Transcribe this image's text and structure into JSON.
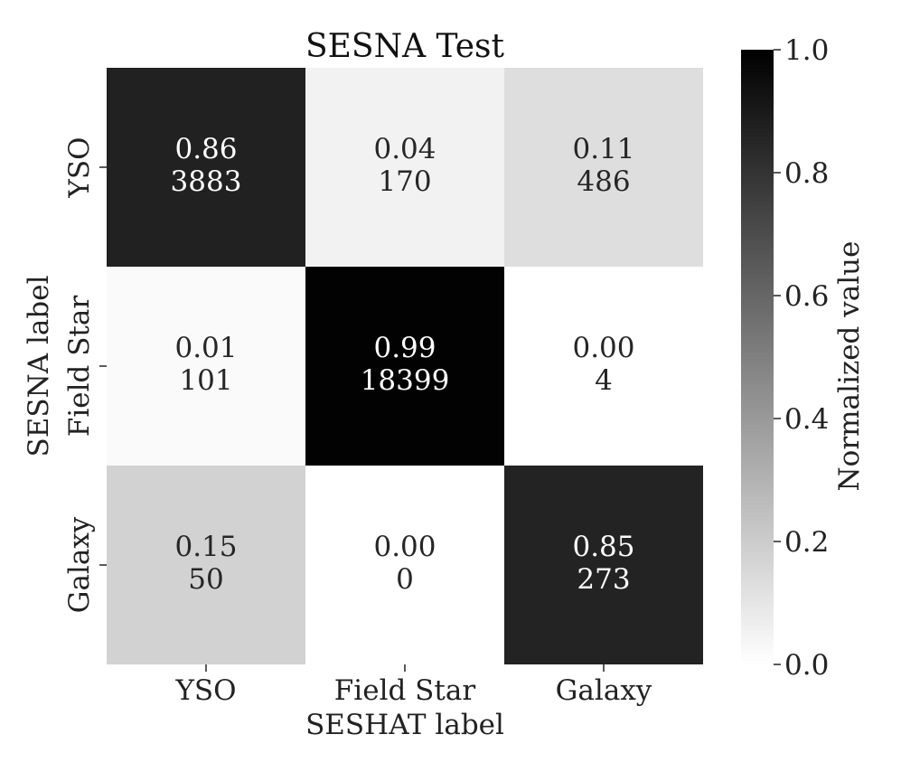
{
  "chart_data": {
    "type": "heatmap",
    "title": "SESNA Test",
    "xlabel": "SESHAT label",
    "ylabel": "SESNA label",
    "x_categories": [
      "YSO",
      "Field Star",
      "Galaxy"
    ],
    "y_categories": [
      "YSO",
      "Field Star",
      "Galaxy"
    ],
    "values": [
      [
        0.86,
        0.04,
        0.11
      ],
      [
        0.01,
        0.99,
        0.0
      ],
      [
        0.15,
        0.0,
        0.85
      ]
    ],
    "value_labels": [
      [
        "0.86",
        "0.04",
        "0.11"
      ],
      [
        "0.01",
        "0.99",
        "0.00"
      ],
      [
        "0.15",
        "0.00",
        "0.85"
      ]
    ],
    "counts": [
      [
        "3883",
        "170",
        "486"
      ],
      [
        "101",
        "18399",
        "4"
      ],
      [
        "50",
        "0",
        "273"
      ]
    ],
    "colorbar": {
      "label": "Normalized value",
      "range": [
        0,
        1
      ],
      "ticks": [
        "0.0",
        "0.2",
        "0.4",
        "0.6",
        "0.8",
        "1.0"
      ],
      "colormap": "Greys (white to black)"
    }
  }
}
